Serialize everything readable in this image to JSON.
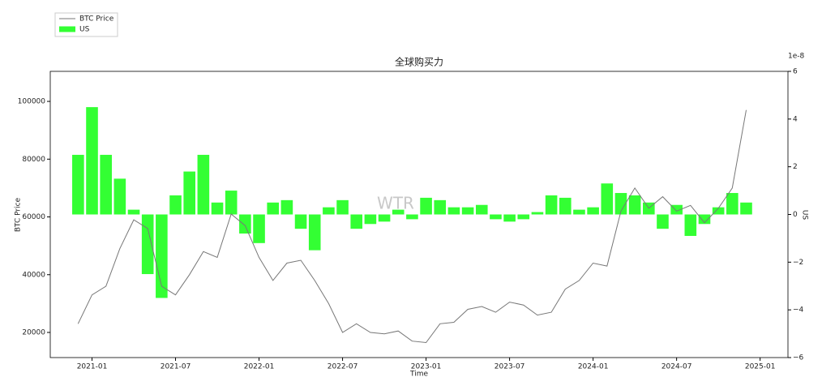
{
  "chart_data": {
    "type": "combo",
    "title": "全球购买力",
    "watermark": "WTR",
    "x_label": "Time",
    "y_label": "BTC Price",
    "y2_label": "US",
    "y2_offset": "1e-8",
    "legend": "upper-left",
    "x": [
      "2020-12",
      "2021-01",
      "2021-02",
      "2021-03",
      "2021-04",
      "2021-05",
      "2021-06",
      "2021-07",
      "2021-08",
      "2021-09",
      "2021-10",
      "2021-11",
      "2021-12",
      "2022-01",
      "2022-02",
      "2022-03",
      "2022-04",
      "2022-05",
      "2022-06",
      "2022-07",
      "2022-08",
      "2022-09",
      "2022-10",
      "2022-11",
      "2022-12",
      "2023-01",
      "2023-02",
      "2023-03",
      "2023-04",
      "2023-05",
      "2023-06",
      "2023-07",
      "2023-08",
      "2023-09",
      "2023-10",
      "2023-11",
      "2023-12",
      "2024-01",
      "2024-02",
      "2024-03",
      "2024-04",
      "2024-05",
      "2024-06",
      "2024-07",
      "2024-08",
      "2024-09",
      "2024-10",
      "2024-11",
      "2024-12"
    ],
    "xlim": [
      "2020-10",
      "2025-03"
    ],
    "xticks": [
      "2021-01",
      "2021-07",
      "2022-01",
      "2022-07",
      "2023-01",
      "2023-07",
      "2024-01",
      "2024-07",
      "2025-01"
    ],
    "ylim": [
      11300,
      110400
    ],
    "yticks": [
      20000,
      40000,
      60000,
      80000,
      100000
    ],
    "y2lim": [
      -6,
      6
    ],
    "y2ticks": [
      {
        "value": -6,
        "label": "−6"
      },
      {
        "value": -4,
        "label": "−4"
      },
      {
        "value": -2,
        "label": "−2"
      },
      0,
      2,
      4,
      6
    ],
    "series": [
      {
        "name": "BTC Price",
        "type": "line",
        "color": "#777777",
        "values": [
          23000,
          33000,
          36000,
          49000,
          59000,
          56000,
          36000,
          33000,
          40000,
          48000,
          46000,
          61000,
          57000,
          46000,
          38000,
          44000,
          45000,
          38000,
          30000,
          20000,
          23000,
          20000,
          19500,
          20500,
          17000,
          16500,
          23000,
          23500,
          28000,
          29000,
          27000,
          30500,
          29500,
          26000,
          27000,
          35000,
          38000,
          44000,
          43000,
          62000,
          70000,
          63000,
          67000,
          62000,
          64000,
          58000,
          63000,
          70000,
          97000
        ]
      },
      {
        "name": "US",
        "type": "bar",
        "axis": "y2",
        "color": "#33ff33",
        "values": [
          2.5,
          4.5,
          2.5,
          1.5,
          0.2,
          -2.5,
          -3.5,
          0.8,
          1.8,
          2.5,
          0.5,
          1.0,
          -0.8,
          -1.2,
          0.5,
          0.6,
          -0.6,
          -1.5,
          0.3,
          0.6,
          -0.6,
          -0.4,
          -0.3,
          0.2,
          -0.2,
          0.7,
          0.6,
          0.3,
          0.3,
          0.4,
          -0.2,
          -0.3,
          -0.2,
          0.1,
          0.8,
          0.7,
          0.2,
          0.3,
          1.3,
          0.9,
          0.8,
          0.5,
          -0.6,
          0.4,
          -0.9,
          -0.4,
          0.3,
          0.9,
          0.5
        ]
      }
    ]
  }
}
